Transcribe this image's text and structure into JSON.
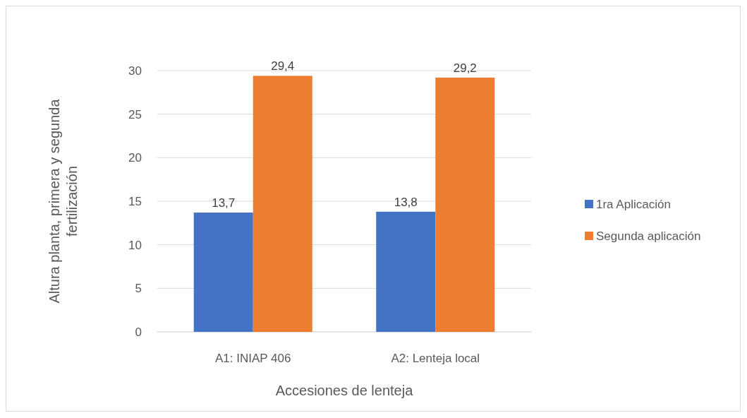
{
  "chart_data": {
    "type": "bar",
    "xlabel": "Accesiones de lenteja",
    "ylabel": "Altura planta, primera y segunda fertilización",
    "categories": [
      "A1: INIAP 406",
      "A2: Lenteja local"
    ],
    "series": [
      {
        "name": "1ra Aplicación",
        "color": "#4472c4",
        "values": [
          13.7,
          13.8
        ],
        "value_labels": [
          "13,7",
          "13,8"
        ]
      },
      {
        "name": "Segunda aplicación",
        "color": "#ed7d31",
        "values": [
          29.4,
          29.2
        ],
        "value_labels": [
          "29,4",
          "29,2"
        ]
      }
    ],
    "ylim": [
      0,
      30
    ],
    "yticks": [
      0,
      5,
      10,
      15,
      20,
      25,
      30
    ],
    "grid": "y",
    "legend": "right"
  }
}
